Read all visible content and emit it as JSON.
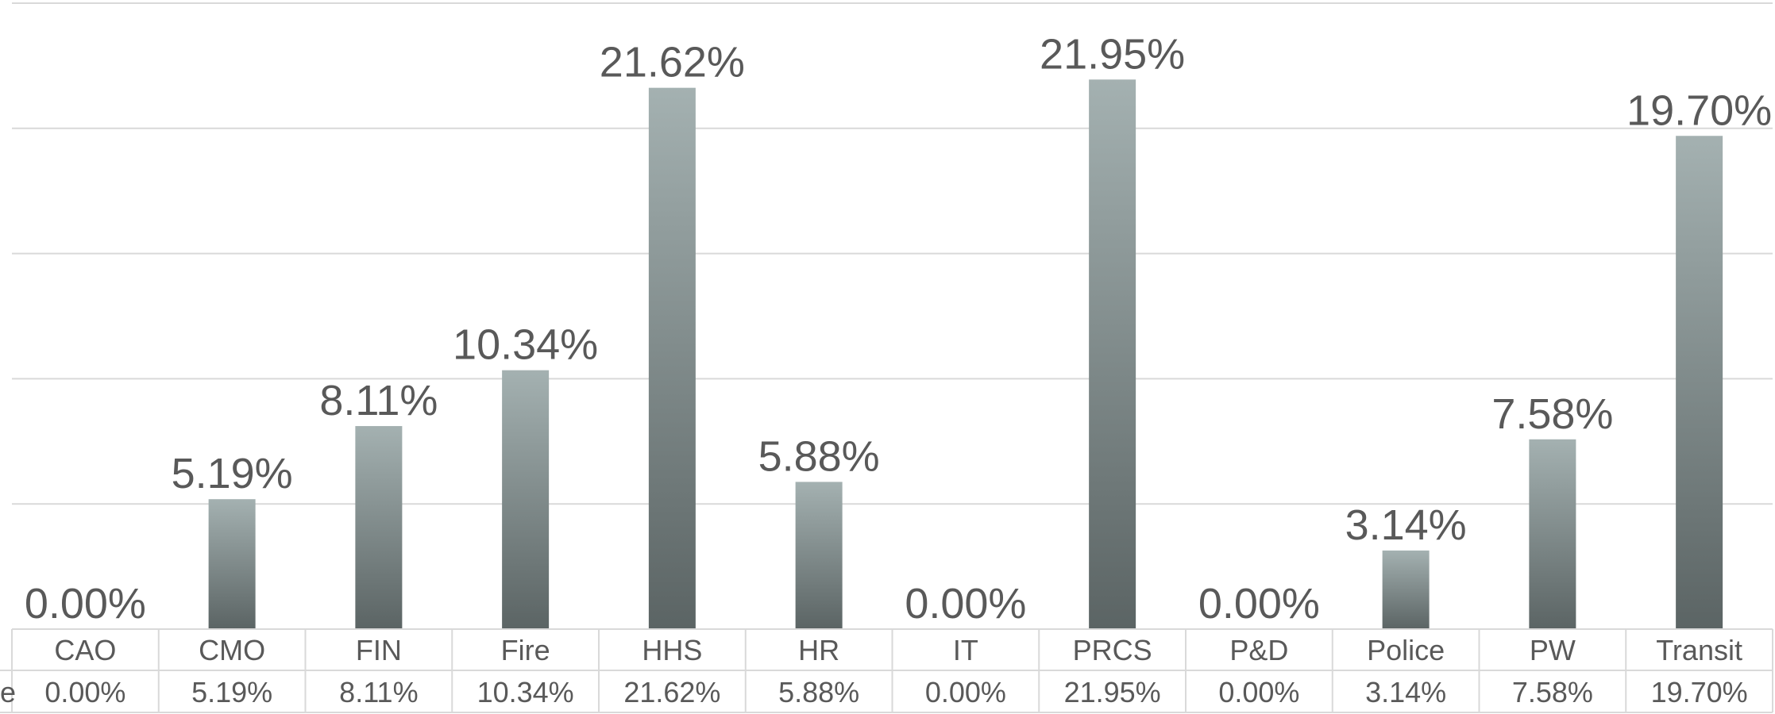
{
  "chart_data": {
    "type": "bar",
    "categories": [
      "CAO",
      "CMO",
      "FIN",
      "Fire",
      "HHS",
      "HR",
      "IT",
      "PRCS",
      "P&D",
      "Police",
      "PW",
      "Transit"
    ],
    "values": [
      0.0,
      5.19,
      8.11,
      10.34,
      21.62,
      5.88,
      0.0,
      21.95,
      0.0,
      3.14,
      7.58,
      19.7
    ],
    "data_labels": [
      "0.00%",
      "5.19%",
      "8.11%",
      "10.34%",
      "21.62%",
      "5.88%",
      "0.00%",
      "21.95%",
      "0.00%",
      "3.14%",
      "7.58%",
      "19.70%"
    ],
    "table_values": [
      "0.00%",
      "5.19%",
      "8.11%",
      "10.34%",
      "21.62%",
      "5.88%",
      "0.00%",
      "21.95%",
      "0.00%",
      "3.14%",
      "7.58%",
      "19.70%"
    ],
    "legend_fragment": "e",
    "ylim": [
      0,
      25
    ],
    "grid": true,
    "gridline_values": [
      5,
      10,
      15,
      20,
      25
    ],
    "colors": {
      "bar_top": "#A4B1B1",
      "bar_bottom": "#5B6464",
      "grid": "#D9D9D9",
      "text": "#595959",
      "table_border": "#D9D9D9"
    }
  }
}
